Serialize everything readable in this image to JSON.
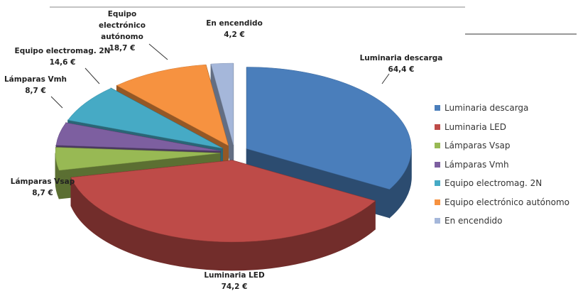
{
  "chart_data": {
    "type": "pie3d",
    "categories": [
      "Luminaria descarga",
      "Luminaria LED",
      "Lámparas Vsap",
      "Lámparas Vmh",
      "Equipo electromag. 2N",
      "Equipo electrónico autónomo",
      "En encendido"
    ],
    "values": [
      64.4,
      74.2,
      8.7,
      8.7,
      14.6,
      18.7,
      4.2
    ],
    "value_labels": [
      "64,4 €",
      "74,2 €",
      "8,7 €",
      "8,7 €",
      "14,6 €",
      "18,7 €",
      "4,2 €"
    ],
    "colors": [
      "#4a7ebb",
      "#be4b48",
      "#98b954",
      "#7d5fa0",
      "#46aac5",
      "#f69240",
      "#a5b7da"
    ],
    "legend": "right"
  }
}
